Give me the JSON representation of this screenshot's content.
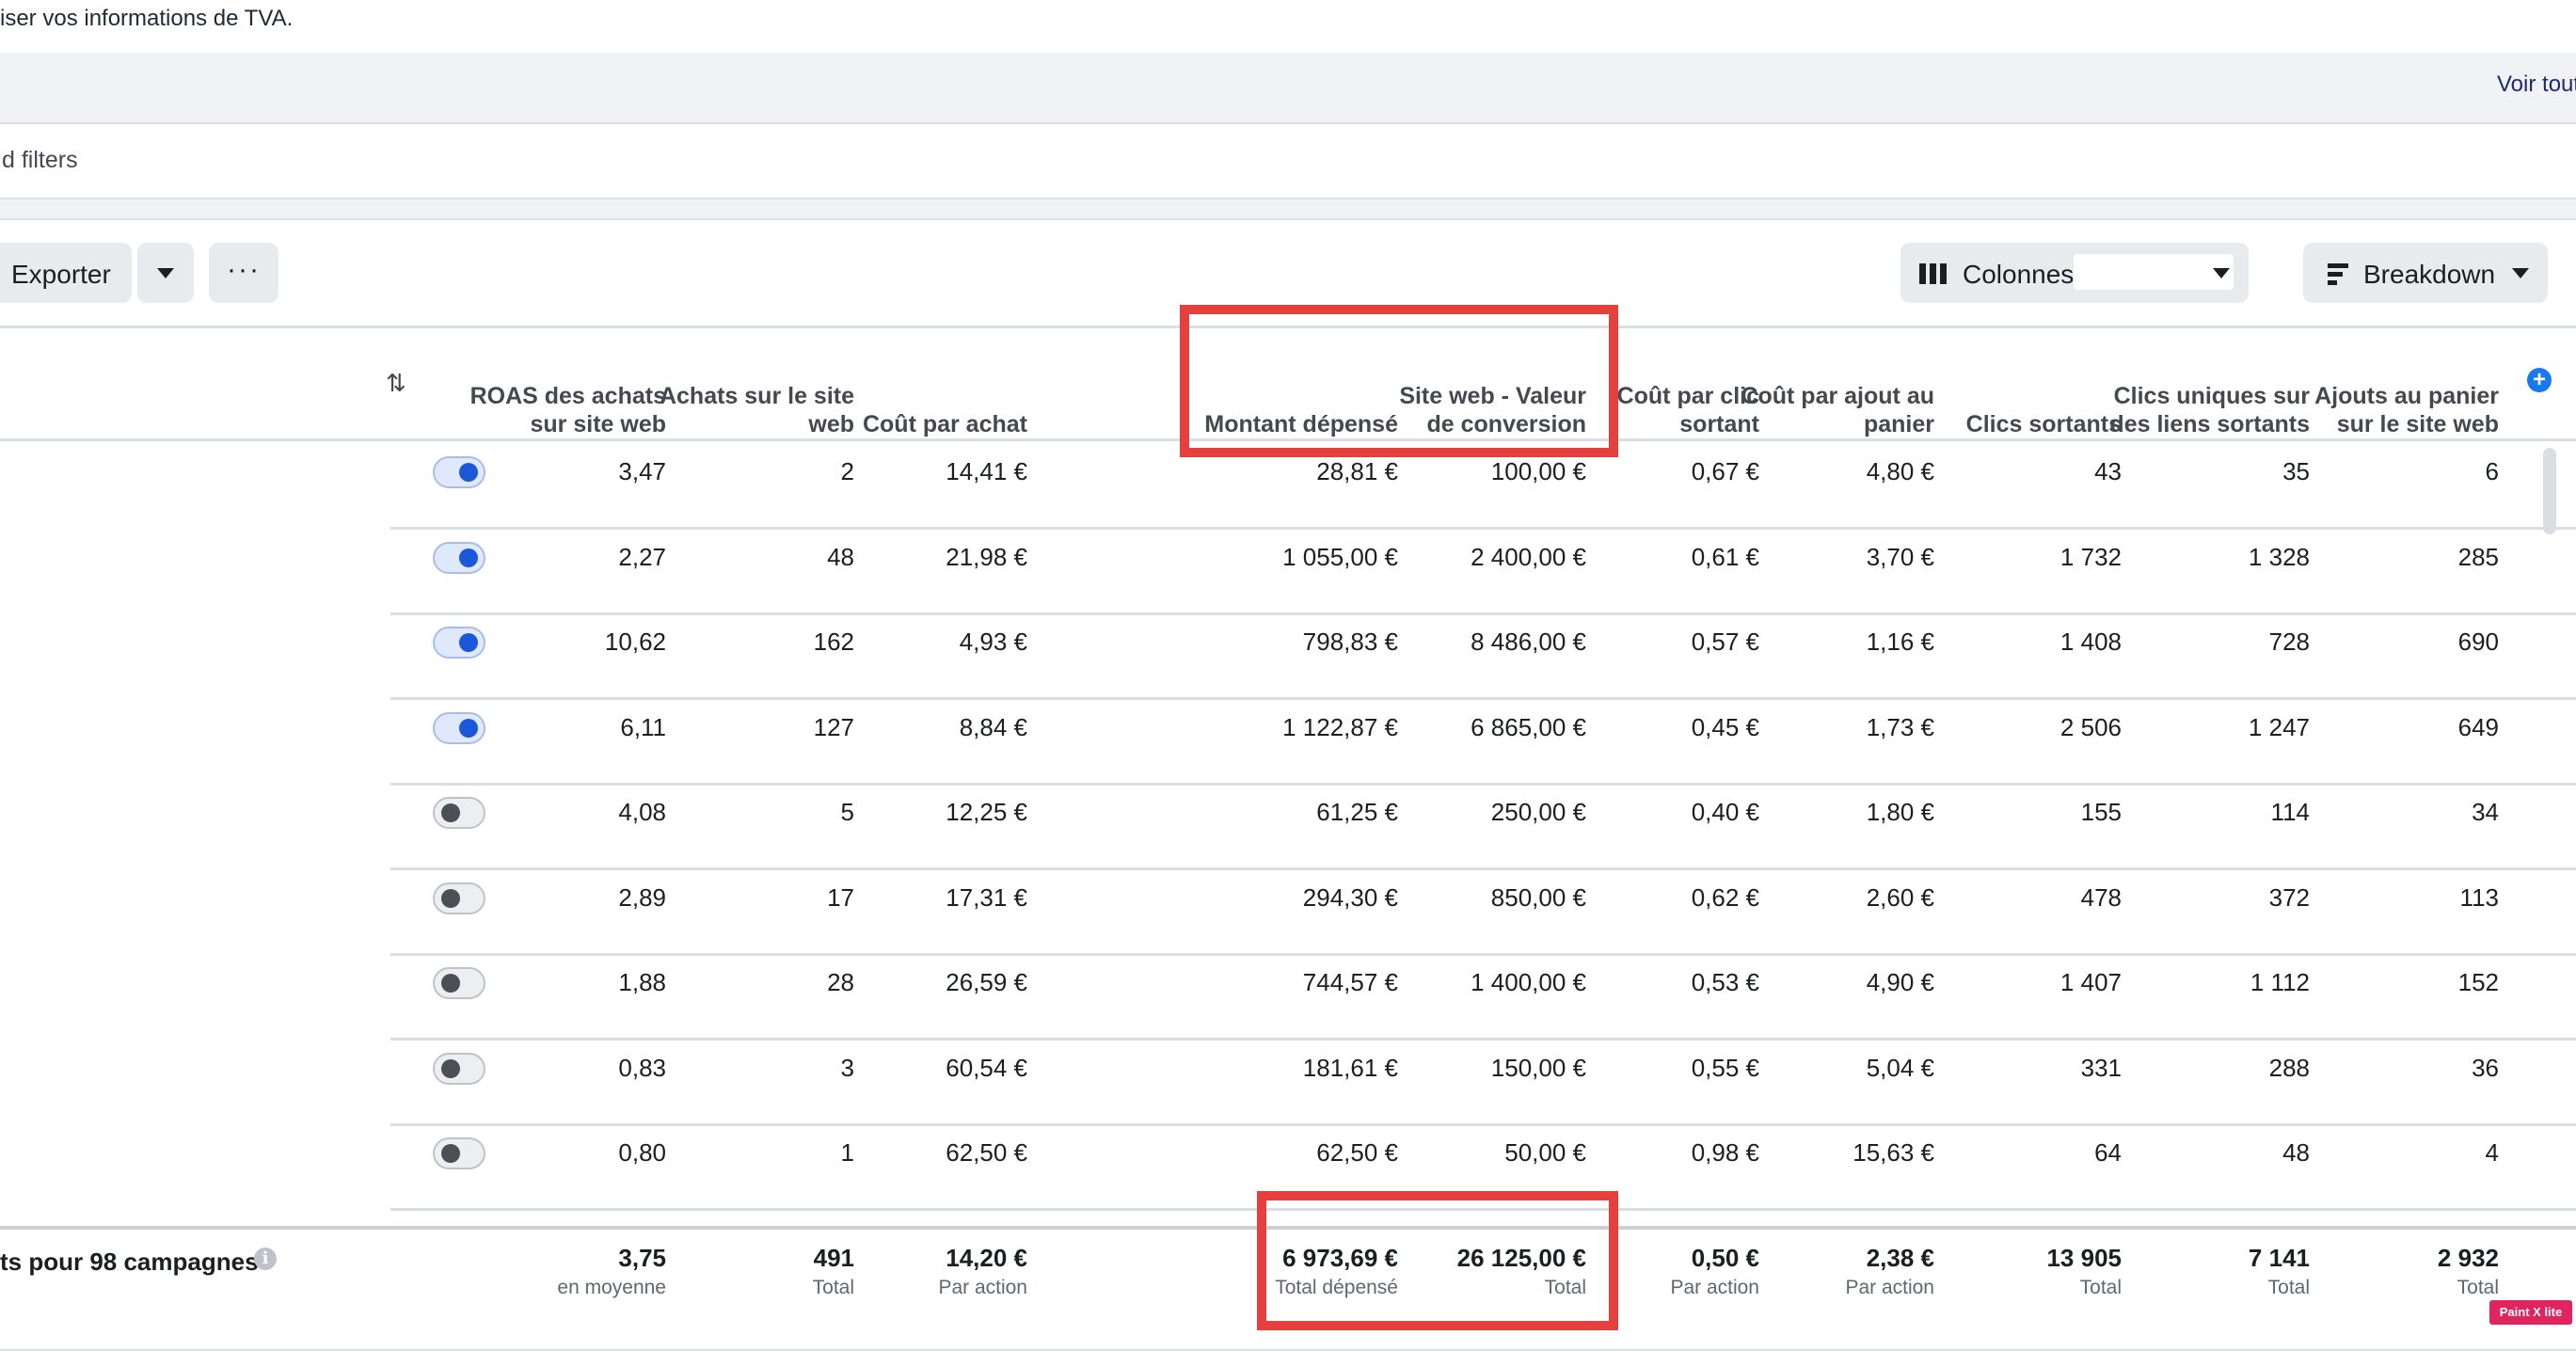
{
  "notice": {
    "text": "iser vos informations de TVA."
  },
  "view_all": "Voir tout",
  "filters": {
    "placeholder": "d filters"
  },
  "toolbar": {
    "export_label": "Exporter",
    "more_label": "···",
    "columns_label": "Colonnes:",
    "columns_value": "",
    "breakdown_label": "Breakdown"
  },
  "table": {
    "headers": [
      "ROAS des achats sur site web",
      "Achats sur le site web",
      "Coût par achat",
      "Montant dépensé",
      "Site web - Valeur de conversion",
      "Coût par clic sortant",
      "Coût par ajout au panier",
      "Clics sortants",
      "Clics uniques sur des liens sortants",
      "Ajouts au panier sur le site web"
    ],
    "rows": [
      {
        "active": true,
        "cells": [
          "3,47",
          "2",
          "14,41 €",
          "28,81 €",
          "100,00 €",
          "0,67 €",
          "4,80 €",
          "43",
          "35",
          "6"
        ]
      },
      {
        "active": true,
        "cells": [
          "2,27",
          "48",
          "21,98 €",
          "1 055,00 €",
          "2 400,00 €",
          "0,61 €",
          "3,70 €",
          "1 732",
          "1 328",
          "285"
        ]
      },
      {
        "active": true,
        "cells": [
          "10,62",
          "162",
          "4,93 €",
          "798,83 €",
          "8 486,00 €",
          "0,57 €",
          "1,16 €",
          "1 408",
          "728",
          "690"
        ]
      },
      {
        "active": true,
        "cells": [
          "6,11",
          "127",
          "8,84 €",
          "1 122,87 €",
          "6 865,00 €",
          "0,45 €",
          "1,73 €",
          "2 506",
          "1 247",
          "649"
        ]
      },
      {
        "active": false,
        "cells": [
          "4,08",
          "5",
          "12,25 €",
          "61,25 €",
          "250,00 €",
          "0,40 €",
          "1,80 €",
          "155",
          "114",
          "34"
        ]
      },
      {
        "active": false,
        "cells": [
          "2,89",
          "17",
          "17,31 €",
          "294,30 €",
          "850,00 €",
          "0,62 €",
          "2,60 €",
          "478",
          "372",
          "113"
        ]
      },
      {
        "active": false,
        "cells": [
          "1,88",
          "28",
          "26,59 €",
          "744,57 €",
          "1 400,00 €",
          "0,53 €",
          "4,90 €",
          "1 407",
          "1 112",
          "152"
        ]
      },
      {
        "active": false,
        "cells": [
          "0,83",
          "3",
          "60,54 €",
          "181,61 €",
          "150,00 €",
          "0,55 €",
          "5,04 €",
          "331",
          "288",
          "36"
        ]
      },
      {
        "active": false,
        "cells": [
          "0,80",
          "1",
          "62,50 €",
          "62,50 €",
          "50,00 €",
          "0,98 €",
          "15,63 €",
          "64",
          "48",
          "4"
        ]
      }
    ],
    "footer": {
      "label": "ts pour 98 campagnes",
      "cells": [
        {
          "value": "3,75",
          "sub": "en moyenne"
        },
        {
          "value": "491",
          "sub": "Total"
        },
        {
          "value": "14,20 €",
          "sub": "Par action"
        },
        {
          "value": "6 973,69 €",
          "sub": "Total dépensé"
        },
        {
          "value": "26 125,00 €",
          "sub": "Total"
        },
        {
          "value": "0,50 €",
          "sub": "Par action"
        },
        {
          "value": "2,38 €",
          "sub": "Par action"
        },
        {
          "value": "13 905",
          "sub": "Total"
        },
        {
          "value": "7 141",
          "sub": "Total"
        },
        {
          "value": "2 932",
          "sub": "Total"
        }
      ]
    }
  },
  "watermark": "Paint X lite",
  "colors": {
    "highlight": "#e5403e",
    "toggle_on": "#1b57d9",
    "link": "#1877f2",
    "panel_bg": "#f0f2f5"
  }
}
